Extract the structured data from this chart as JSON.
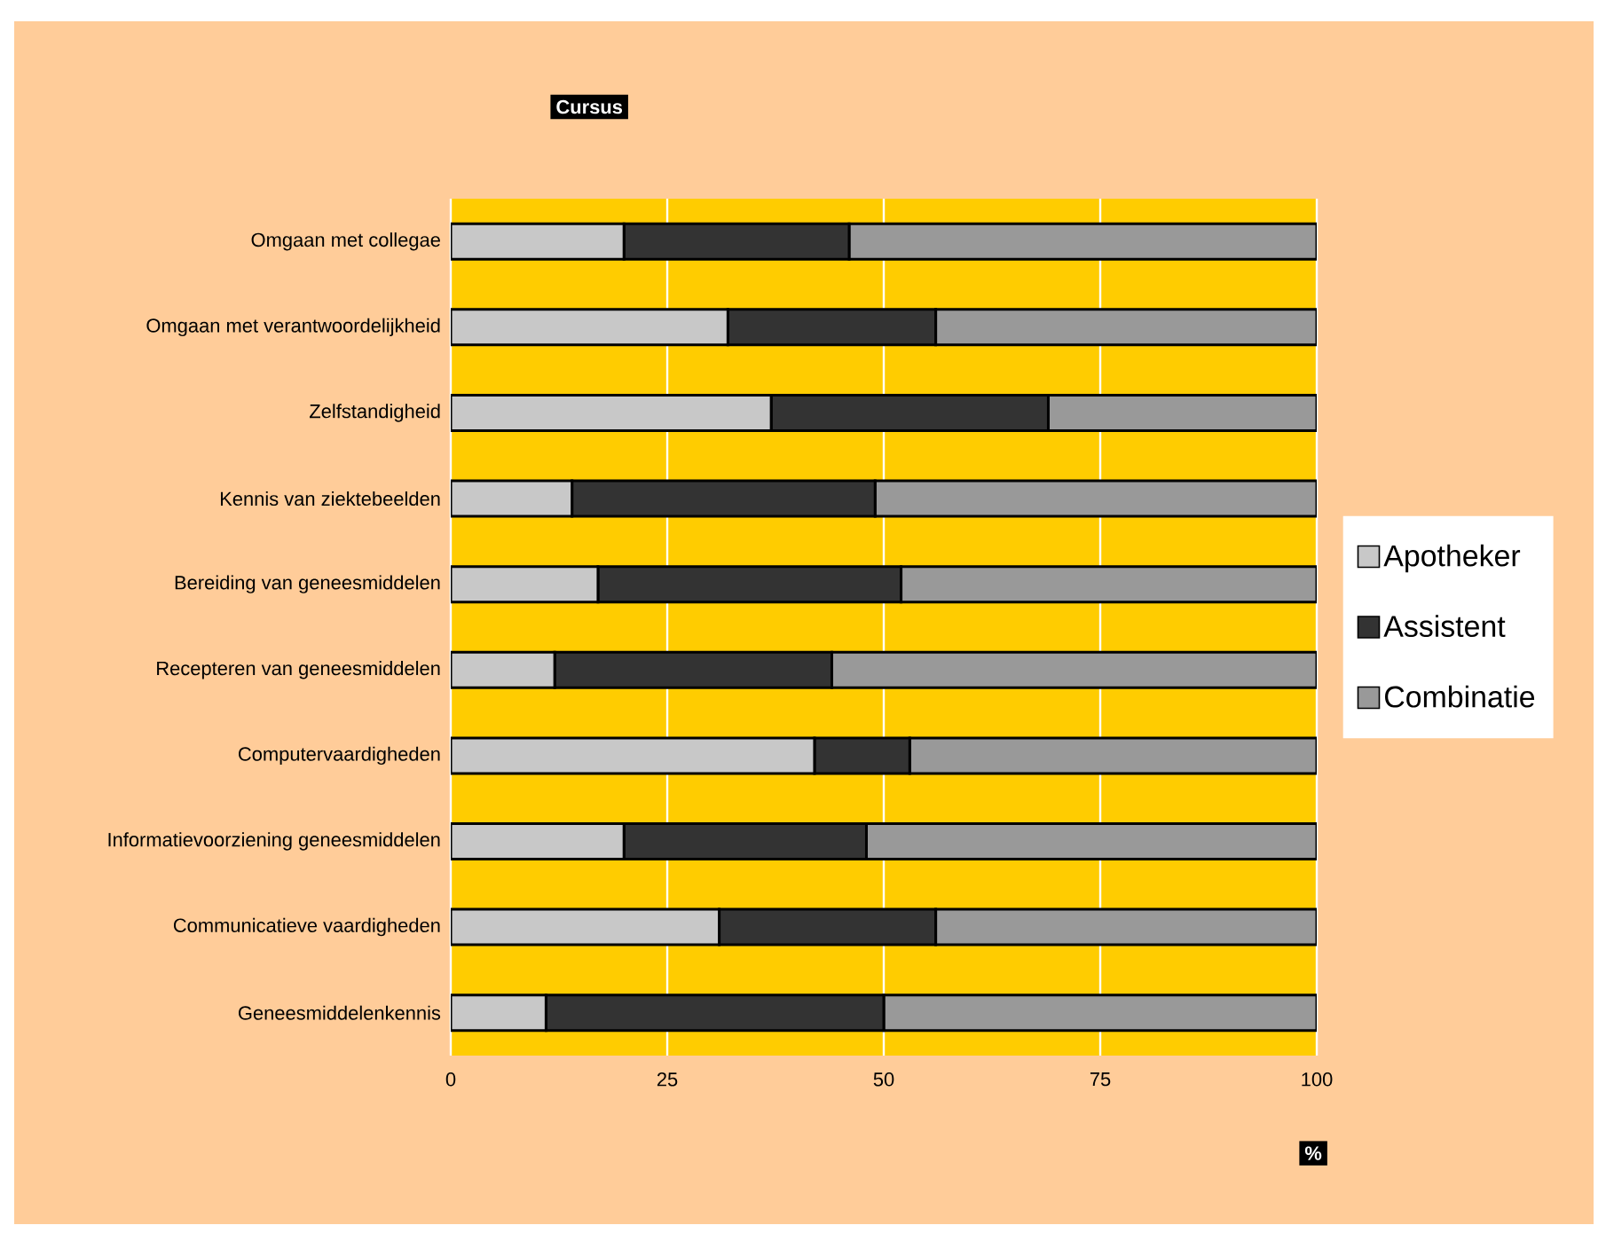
{
  "chart_data": {
    "type": "bar",
    "orientation": "horizontal",
    "stacked": true,
    "title": "Cursus",
    "xlabel": "%",
    "categories": [
      "Omgaan met collegae",
      "Omgaan met verantwoordelijkheid",
      "Zelfstandigheid",
      "Kennis van ziektebeelden",
      "Bereiding van geneesmiddelen",
      "Recepteren van geneesmiddelen",
      "Computervaardigheden",
      "Informatievoorziening geneesmiddelen",
      "Communicatieve vaardigheden",
      "Geneesmiddelenkennis"
    ],
    "series": [
      {
        "name": "Apotheker",
        "color": "#c8c8c8",
        "values": [
          20,
          32,
          37,
          14,
          17,
          12,
          42,
          20,
          31,
          11
        ]
      },
      {
        "name": "Assistent",
        "color": "#333333",
        "values": [
          26,
          24,
          32,
          35,
          35,
          32,
          11,
          28,
          25,
          39
        ]
      },
      {
        "name": "Combinatie",
        "color": "#999999",
        "values": [
          54,
          44,
          31,
          51,
          48,
          56,
          47,
          52,
          44,
          50
        ]
      }
    ],
    "xlim": [
      0,
      100
    ],
    "xticks": [
      0,
      25,
      50,
      75,
      100
    ],
    "grid": "x",
    "legend": "right"
  }
}
